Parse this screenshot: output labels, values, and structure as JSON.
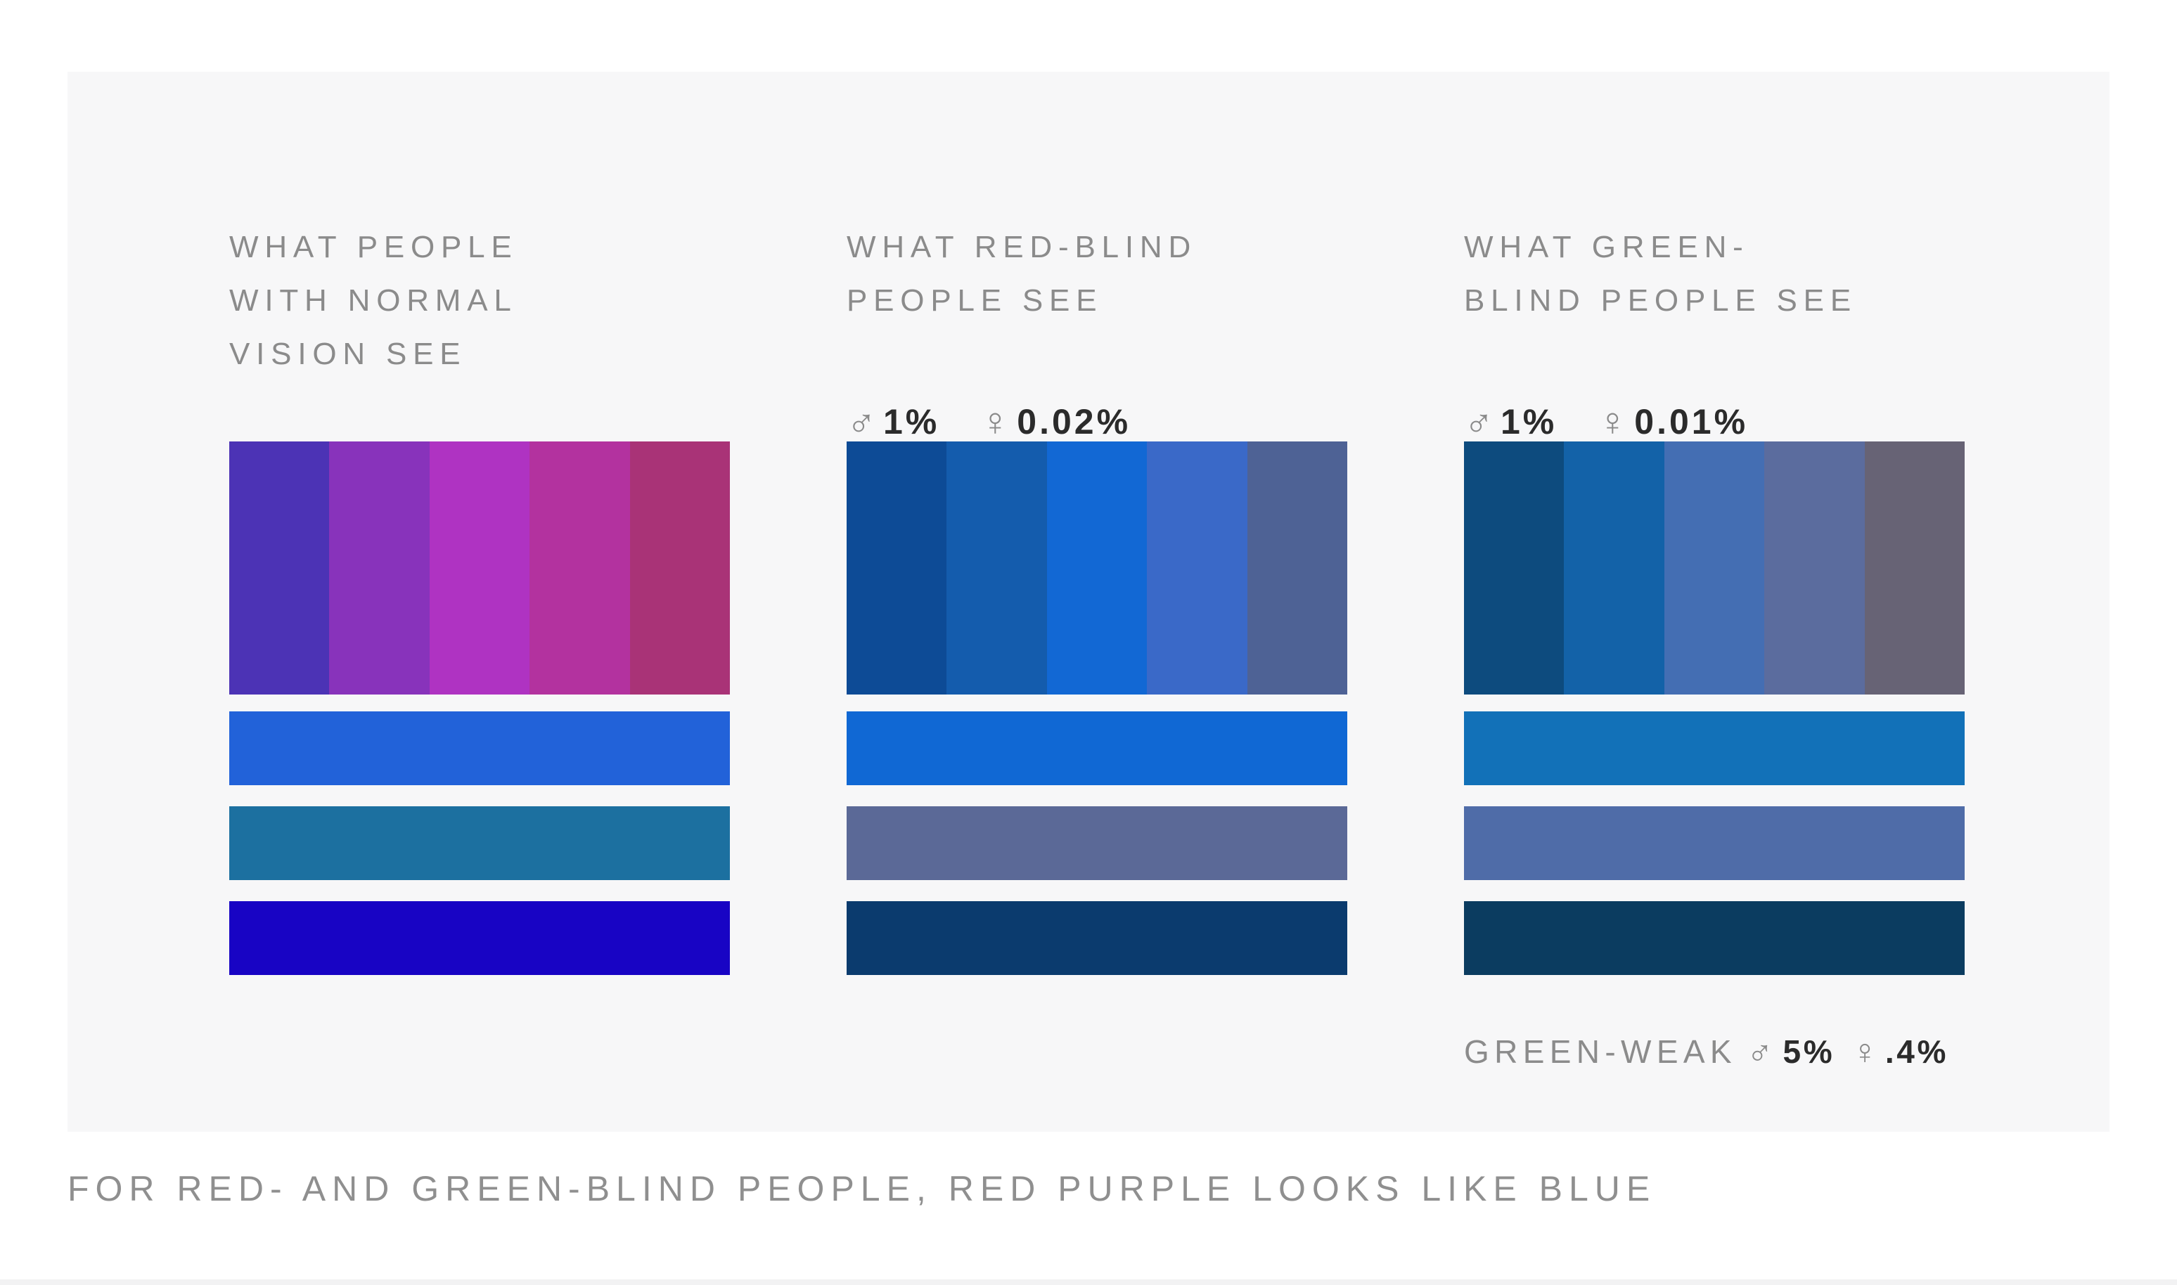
{
  "page": {
    "background": "#ffffff",
    "card_background": "#f7f7f8",
    "title_color": "#8b8b8b",
    "stat_value_color": "#2b2b2b",
    "icon_color": "#8a8a8a",
    "caption_color": "#8f8f8f",
    "caption": "FOR RED- AND GREEN-BLIND PEOPLE, RED PURPLE LOOKS LIKE BLUE"
  },
  "icons": {
    "male": "♂",
    "female": "♀"
  },
  "panels": [
    {
      "id": "normal-vision",
      "title_lines": [
        "WHAT PEOPLE",
        "WITH NORMAL",
        "VISION SEE"
      ],
      "stripes": [
        "#4C33B5",
        "#8833BB",
        "#AF33C2",
        "#B3329F",
        "#A93377"
      ],
      "bars": [
        "#2262D9",
        "#1C70A0",
        "#1804C4"
      ]
    },
    {
      "id": "red-blind",
      "title_lines": [
        "WHAT RED-BLIND",
        "PEOPLE SEE"
      ],
      "stats": {
        "male": "1%",
        "female": "0.02%"
      },
      "stripes": [
        "#0D4B96",
        "#145CAD",
        "#1268D4",
        "#3A69C8",
        "#4E6295"
      ],
      "bars": [
        "#1068D4",
        "#5B6997",
        "#0B3B6E"
      ]
    },
    {
      "id": "green-blind",
      "title_lines": [
        "WHAT GREEN-",
        "BLIND PEOPLE SEE"
      ],
      "stats": {
        "male": "1%",
        "female": "0.01%"
      },
      "stripes": [
        "#0D4B7E",
        "#1362A8",
        "#446EB3",
        "#5B6C9E",
        "#676375"
      ],
      "bars": [
        "#1271B8",
        "#4F6CA8",
        "#0B3C60"
      ]
    }
  ],
  "green_weak": {
    "label": "GREEN-WEAK",
    "male": "5%",
    "female": ".4%"
  }
}
